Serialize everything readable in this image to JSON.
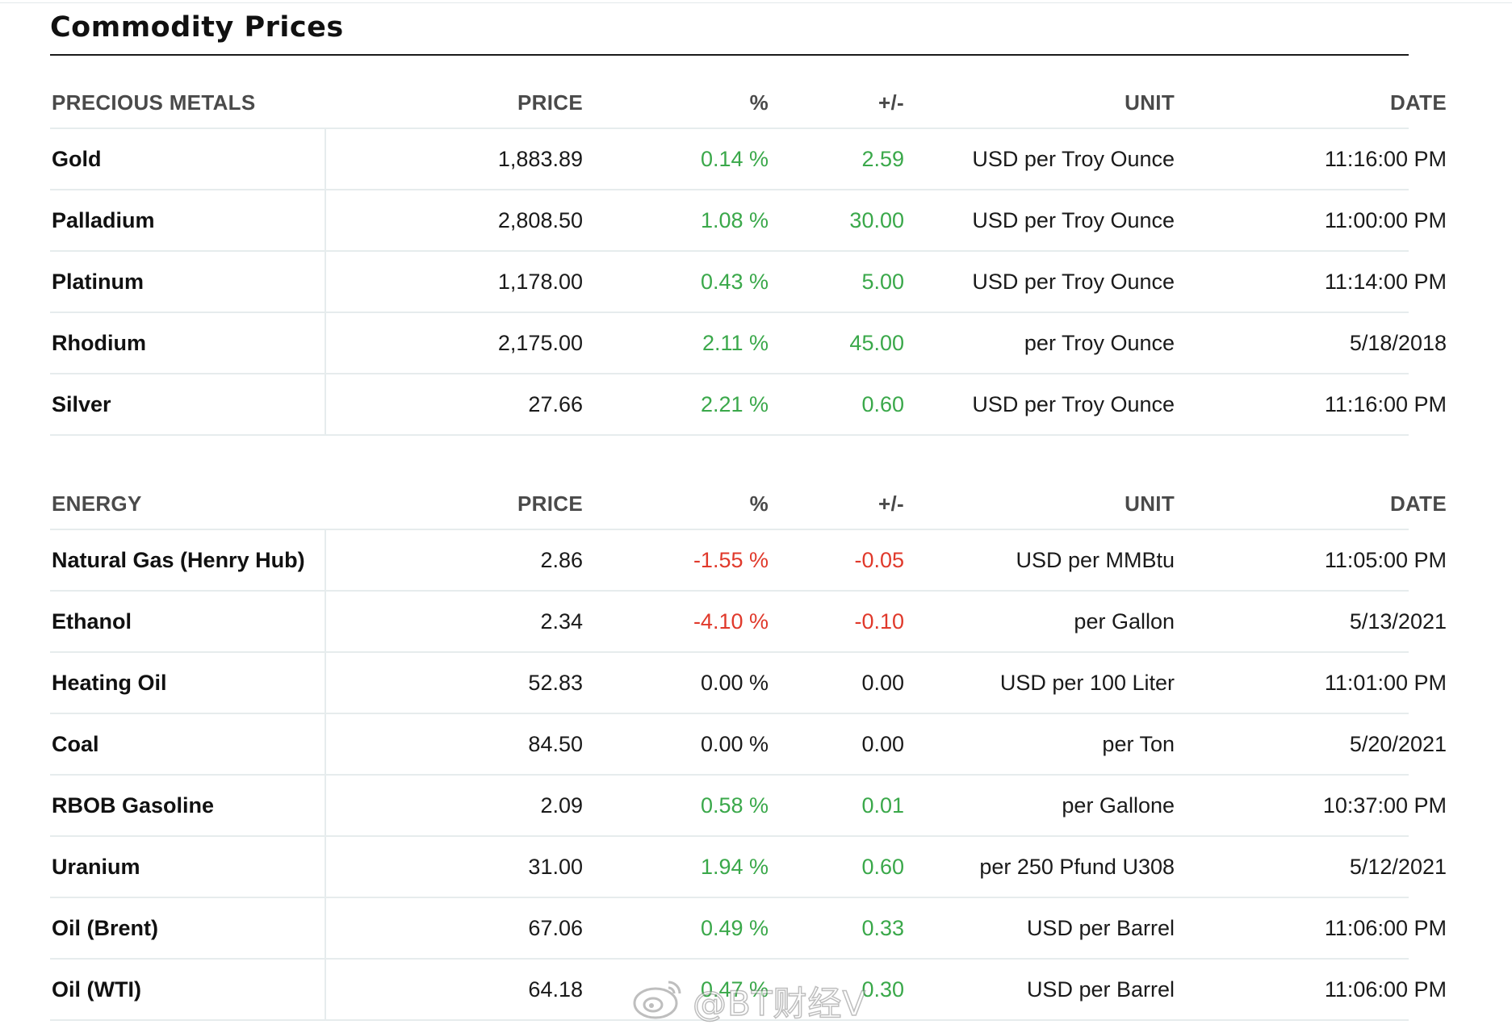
{
  "page": {
    "title": "Commodity Prices"
  },
  "colors": {
    "positive": "#3aa84a",
    "negative": "#e0392b",
    "neutral": "#1a1a1a"
  },
  "sections": [
    {
      "headers": [
        "PRECIOUS METALS",
        "PRICE",
        "%",
        "+/-",
        "UNIT",
        "DATE"
      ],
      "rows": [
        {
          "name": "Gold",
          "price": "1,883.89",
          "pct": "0.14 %",
          "chg": "2.59",
          "unit": "USD per Troy Ounce",
          "date": "11:16:00 PM",
          "trend": "pos"
        },
        {
          "name": "Palladium",
          "price": "2,808.50",
          "pct": "1.08 %",
          "chg": "30.00",
          "unit": "USD per Troy Ounce",
          "date": "11:00:00 PM",
          "trend": "pos"
        },
        {
          "name": "Platinum",
          "price": "1,178.00",
          "pct": "0.43 %",
          "chg": "5.00",
          "unit": "USD per Troy Ounce",
          "date": "11:14:00 PM",
          "trend": "pos"
        },
        {
          "name": "Rhodium",
          "price": "2,175.00",
          "pct": "2.11 %",
          "chg": "45.00",
          "unit": "per Troy Ounce",
          "date": "5/18/2018",
          "trend": "pos"
        },
        {
          "name": "Silver",
          "price": "27.66",
          "pct": "2.21 %",
          "chg": "0.60",
          "unit": "USD per Troy Ounce",
          "date": "11:16:00 PM",
          "trend": "pos"
        }
      ]
    },
    {
      "headers": [
        "ENERGY",
        "PRICE",
        "%",
        "+/-",
        "UNIT",
        "DATE"
      ],
      "rows": [
        {
          "name": "Natural Gas (Henry Hub)",
          "price": "2.86",
          "pct": "-1.55 %",
          "chg": "-0.05",
          "unit": "USD per MMBtu",
          "date": "11:05:00 PM",
          "trend": "neg"
        },
        {
          "name": "Ethanol",
          "price": "2.34",
          "pct": "-4.10 %",
          "chg": "-0.10",
          "unit": "per Gallon",
          "date": "5/13/2021",
          "trend": "neg"
        },
        {
          "name": "Heating Oil",
          "price": "52.83",
          "pct": "0.00 %",
          "chg": "0.00",
          "unit": "USD per 100 Liter",
          "date": "11:01:00 PM",
          "trend": "flat"
        },
        {
          "name": "Coal",
          "price": "84.50",
          "pct": "0.00 %",
          "chg": "0.00",
          "unit": "per Ton",
          "date": "5/20/2021",
          "trend": "flat"
        },
        {
          "name": "RBOB Gasoline",
          "price": "2.09",
          "pct": "0.58 %",
          "chg": "0.01",
          "unit": "per Gallone",
          "date": "10:37:00 PM",
          "trend": "pos"
        },
        {
          "name": "Uranium",
          "price": "31.00",
          "pct": "1.94 %",
          "chg": "0.60",
          "unit": "per 250 Pfund U308",
          "date": "5/12/2021",
          "trend": "pos"
        },
        {
          "name": "Oil (Brent)",
          "price": "67.06",
          "pct": "0.49 %",
          "chg": "0.33",
          "unit": "USD per Barrel",
          "date": "11:06:00 PM",
          "trend": "pos"
        },
        {
          "name": "Oil (WTI)",
          "price": "64.18",
          "pct": "0.47 %",
          "chg": "0.30",
          "unit": "USD per Barrel",
          "date": "11:06:00 PM",
          "trend": "pos"
        }
      ]
    }
  ],
  "watermark": {
    "text": "@BT财经V",
    "icon": "weibo-logo-icon"
  }
}
